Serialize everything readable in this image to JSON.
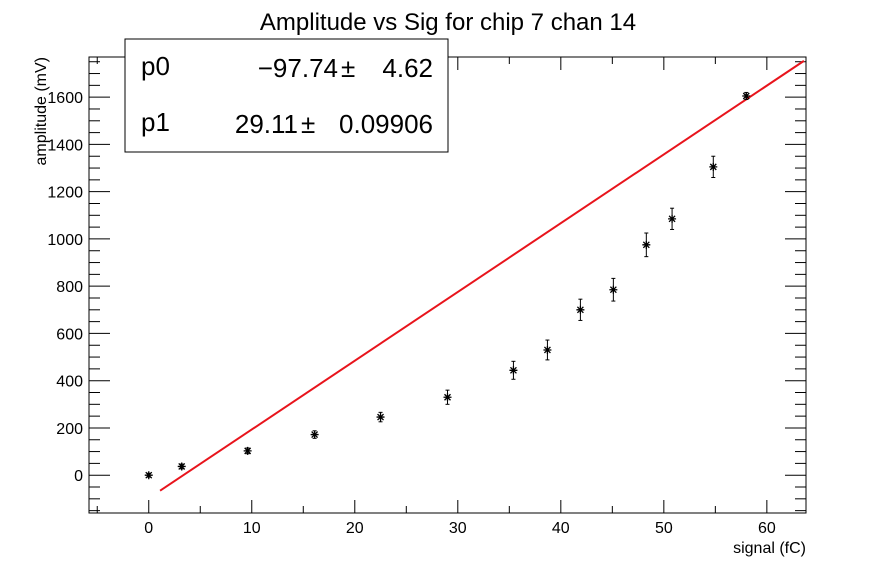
{
  "chart_data": {
    "type": "scatter",
    "title": "Amplitude vs Sig for chip 7 chan 14",
    "xlabel": "signal (fC)",
    "ylabel": "amplitude (mV)",
    "xlim": [
      -5.8,
      63.8
    ],
    "ylim": [
      -160,
      1770
    ],
    "x_ticks": [
      0,
      10,
      20,
      30,
      40,
      50,
      60
    ],
    "y_ticks": [
      0,
      200,
      400,
      600,
      800,
      1000,
      1200,
      1400,
      1600
    ],
    "grid": false,
    "legend": "none",
    "series": [
      {
        "marker": "star",
        "color": "#000000",
        "points": [
          {
            "x": 0.0,
            "y": 0,
            "err": 8
          },
          {
            "x": 3.2,
            "y": 37,
            "err": 10
          },
          {
            "x": 9.6,
            "y": 103,
            "err": 12
          },
          {
            "x": 16.1,
            "y": 172,
            "err": 16
          },
          {
            "x": 22.5,
            "y": 246,
            "err": 20
          },
          {
            "x": 29.0,
            "y": 330,
            "err": 30
          },
          {
            "x": 35.4,
            "y": 444,
            "err": 38
          },
          {
            "x": 38.7,
            "y": 530,
            "err": 42
          },
          {
            "x": 41.9,
            "y": 700,
            "err": 45
          },
          {
            "x": 45.1,
            "y": 785,
            "err": 48
          },
          {
            "x": 48.3,
            "y": 975,
            "err": 50
          },
          {
            "x": 50.8,
            "y": 1085,
            "err": 45
          },
          {
            "x": 54.8,
            "y": 1305,
            "err": 45
          },
          {
            "x": 58.0,
            "y": 1605,
            "err": 15
          }
        ]
      }
    ],
    "fit": {
      "type": "linear",
      "color": "#e8141c",
      "p0": -97.74,
      "p1": 29.11,
      "x_range": [
        1.1,
        63.6
      ]
    },
    "stats_box": [
      {
        "name": "p0",
        "value": "−97.74",
        "pm": "±",
        "error": "4.62"
      },
      {
        "name": "p1",
        "value": "29.11",
        "pm": "±",
        "error": "0.09906"
      }
    ]
  }
}
